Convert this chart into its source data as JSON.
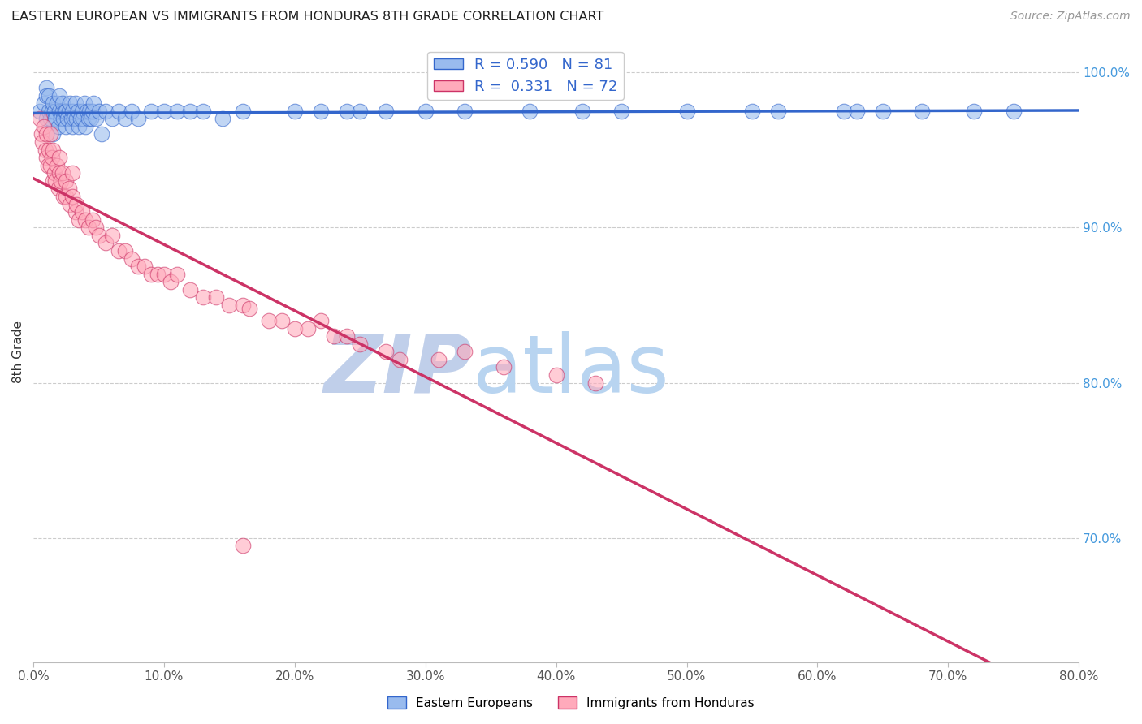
{
  "title": "EASTERN EUROPEAN VS IMMIGRANTS FROM HONDURAS 8TH GRADE CORRELATION CHART",
  "source": "Source: ZipAtlas.com",
  "xlabel_ticks": [
    "0.0%",
    "10.0%",
    "20.0%",
    "30.0%",
    "40.0%",
    "50.0%",
    "60.0%",
    "70.0%",
    "80.0%"
  ],
  "ylabel_label": "8th Grade",
  "right_yticks": [
    "100.0%",
    "90.0%",
    "80.0%",
    "70.0%"
  ],
  "right_ytick_vals": [
    1.0,
    0.9,
    0.8,
    0.7
  ],
  "xlim": [
    0.0,
    0.8
  ],
  "ylim": [
    0.62,
    1.02
  ],
  "r_blue": 0.59,
  "n_blue": 81,
  "r_pink": 0.331,
  "n_pink": 72,
  "blue_color": "#99BBEE",
  "pink_color": "#FFAABB",
  "blue_line_color": "#3366CC",
  "pink_line_color": "#CC3366",
  "title_color": "#222222",
  "right_axis_color": "#4499DD",
  "watermark_zip_color": "#C8D8F0",
  "watermark_atlas_color": "#C8D8F0",
  "blue_scatter_x": [
    0.005,
    0.008,
    0.01,
    0.01,
    0.01,
    0.012,
    0.012,
    0.013,
    0.014,
    0.015,
    0.015,
    0.016,
    0.017,
    0.018,
    0.019,
    0.02,
    0.02,
    0.021,
    0.022,
    0.022,
    0.023,
    0.024,
    0.025,
    0.025,
    0.026,
    0.027,
    0.028,
    0.029,
    0.03,
    0.03,
    0.031,
    0.032,
    0.033,
    0.034,
    0.035,
    0.036,
    0.037,
    0.038,
    0.039,
    0.04,
    0.041,
    0.042,
    0.043,
    0.044,
    0.045,
    0.046,
    0.048,
    0.05,
    0.052,
    0.055,
    0.06,
    0.065,
    0.07,
    0.075,
    0.08,
    0.09,
    0.1,
    0.11,
    0.12,
    0.13,
    0.145,
    0.16,
    0.2,
    0.22,
    0.24,
    0.25,
    0.27,
    0.3,
    0.33,
    0.38,
    0.42,
    0.45,
    0.5,
    0.55,
    0.57,
    0.62,
    0.63,
    0.65,
    0.68,
    0.72,
    0.75
  ],
  "blue_scatter_y": [
    0.975,
    0.98,
    0.99,
    0.985,
    0.97,
    0.975,
    0.985,
    0.97,
    0.975,
    0.98,
    0.96,
    0.975,
    0.97,
    0.98,
    0.965,
    0.975,
    0.985,
    0.97,
    0.975,
    0.98,
    0.97,
    0.975,
    0.965,
    0.975,
    0.97,
    0.975,
    0.98,
    0.97,
    0.965,
    0.975,
    0.97,
    0.98,
    0.97,
    0.975,
    0.965,
    0.97,
    0.975,
    0.97,
    0.98,
    0.965,
    0.975,
    0.97,
    0.975,
    0.97,
    0.975,
    0.98,
    0.97,
    0.975,
    0.96,
    0.975,
    0.97,
    0.975,
    0.97,
    0.975,
    0.97,
    0.975,
    0.975,
    0.975,
    0.975,
    0.975,
    0.97,
    0.975,
    0.975,
    0.975,
    0.975,
    0.975,
    0.975,
    0.975,
    0.975,
    0.975,
    0.975,
    0.975,
    0.975,
    0.975,
    0.975,
    0.975,
    0.975,
    0.975,
    0.975,
    0.975,
    0.975
  ],
  "pink_scatter_x": [
    0.005,
    0.006,
    0.007,
    0.008,
    0.009,
    0.01,
    0.01,
    0.011,
    0.012,
    0.013,
    0.013,
    0.014,
    0.015,
    0.015,
    0.016,
    0.017,
    0.018,
    0.019,
    0.02,
    0.02,
    0.021,
    0.022,
    0.023,
    0.025,
    0.025,
    0.027,
    0.028,
    0.03,
    0.03,
    0.032,
    0.033,
    0.035,
    0.037,
    0.04,
    0.042,
    0.045,
    0.048,
    0.05,
    0.055,
    0.06,
    0.065,
    0.07,
    0.075,
    0.08,
    0.085,
    0.09,
    0.095,
    0.1,
    0.105,
    0.11,
    0.12,
    0.13,
    0.14,
    0.15,
    0.16,
    0.165,
    0.18,
    0.19,
    0.2,
    0.21,
    0.22,
    0.23,
    0.24,
    0.25,
    0.27,
    0.28,
    0.31,
    0.33,
    0.36,
    0.4,
    0.43,
    0.16
  ],
  "pink_scatter_y": [
    0.97,
    0.96,
    0.955,
    0.965,
    0.95,
    0.945,
    0.96,
    0.94,
    0.95,
    0.94,
    0.96,
    0.945,
    0.93,
    0.95,
    0.935,
    0.93,
    0.94,
    0.925,
    0.935,
    0.945,
    0.93,
    0.935,
    0.92,
    0.93,
    0.92,
    0.925,
    0.915,
    0.92,
    0.935,
    0.91,
    0.915,
    0.905,
    0.91,
    0.905,
    0.9,
    0.905,
    0.9,
    0.895,
    0.89,
    0.895,
    0.885,
    0.885,
    0.88,
    0.875,
    0.875,
    0.87,
    0.87,
    0.87,
    0.865,
    0.87,
    0.86,
    0.855,
    0.855,
    0.85,
    0.85,
    0.848,
    0.84,
    0.84,
    0.835,
    0.835,
    0.84,
    0.83,
    0.83,
    0.825,
    0.82,
    0.815,
    0.815,
    0.82,
    0.81,
    0.805,
    0.8,
    0.695
  ]
}
